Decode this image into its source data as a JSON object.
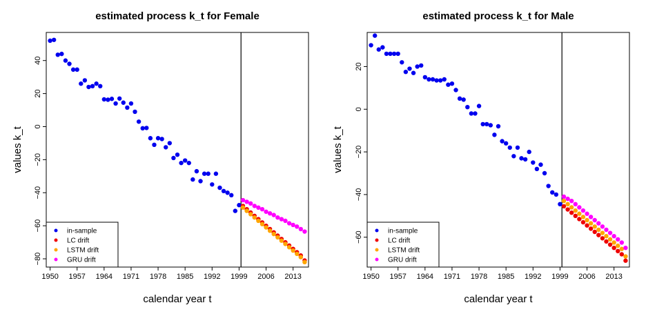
{
  "colors": {
    "in_sample": "#0000ee",
    "lc_drift": "#ee0000",
    "lstm_drift": "#ffa500",
    "gru_drift": "#ff00ff",
    "frame": "#000000"
  },
  "legend_entries": [
    "in-sample",
    "LC drift",
    "LSTM drift",
    "GRU drift"
  ],
  "chart_data": [
    {
      "type": "scatter",
      "title": "estimated process k_t for Female",
      "xlabel": "calendar year t",
      "ylabel": "values k_t",
      "xlim": [
        1949,
        2017
      ],
      "ylim": [
        -85,
        57
      ],
      "xticks": [
        1950,
        1957,
        1964,
        1971,
        1978,
        1985,
        1992,
        1999,
        2006,
        2013
      ],
      "yticks": [
        -80,
        -60,
        -40,
        -20,
        0,
        20,
        40
      ],
      "vline": 1999.5,
      "legend_position": "bottom-left",
      "series": [
        {
          "name": "in-sample",
          "color_key": "in_sample",
          "x": [
            1950,
            1951,
            1952,
            1953,
            1954,
            1955,
            1956,
            1957,
            1958,
            1959,
            1960,
            1961,
            1962,
            1963,
            1964,
            1965,
            1966,
            1967,
            1968,
            1969,
            1970,
            1971,
            1972,
            1973,
            1974,
            1975,
            1976,
            1977,
            1978,
            1979,
            1980,
            1981,
            1982,
            1983,
            1984,
            1985,
            1986,
            1987,
            1988,
            1989,
            1990,
            1991,
            1992,
            1993,
            1994,
            1995,
            1996,
            1997,
            1998,
            1999
          ],
          "y": [
            52,
            52.5,
            43.5,
            44,
            40,
            38,
            34.5,
            34.5,
            26,
            28,
            24,
            24.5,
            26,
            24.5,
            16.5,
            16.3,
            16.8,
            14,
            17,
            14.5,
            11.5,
            14,
            9,
            3,
            -1,
            -0.8,
            -7,
            -11,
            -7,
            -7.5,
            -12.5,
            -10,
            -19,
            -17,
            -22,
            -20.5,
            -22,
            -32,
            -27,
            -33,
            -28.5,
            -28.5,
            -35,
            -28.5,
            -37,
            -39,
            -40,
            -41.5,
            -51,
            -47.5
          ]
        },
        {
          "name": "LC drift",
          "color_key": "lc_drift",
          "x": [
            2000,
            2001,
            2002,
            2003,
            2004,
            2005,
            2006,
            2007,
            2008,
            2009,
            2010,
            2011,
            2012,
            2013,
            2014,
            2015,
            2016
          ],
          "y": [
            -48,
            -50,
            -52,
            -54,
            -56,
            -58,
            -60,
            -62,
            -64,
            -66,
            -68,
            -70,
            -72,
            -74,
            -76,
            -78,
            -81
          ]
        },
        {
          "name": "LSTM drift",
          "color_key": "lstm_drift",
          "x": [
            2000,
            2001,
            2002,
            2003,
            2004,
            2005,
            2006,
            2007,
            2008,
            2009,
            2010,
            2011,
            2012,
            2013,
            2014,
            2015,
            2016
          ],
          "y": [
            -49,
            -51,
            -53,
            -55,
            -57,
            -59,
            -61,
            -63,
            -65,
            -67,
            -69,
            -71,
            -73,
            -75,
            -77,
            -79,
            -82
          ]
        },
        {
          "name": "GRU drift",
          "color_key": "gru_drift",
          "x": [
            2000,
            2001,
            2002,
            2003,
            2004,
            2005,
            2006,
            2007,
            2008,
            2009,
            2010,
            2011,
            2012,
            2013,
            2014,
            2015,
            2016
          ],
          "y": [
            -44.5,
            -45.5,
            -46.5,
            -48,
            -49,
            -50,
            -51.5,
            -52.5,
            -53.5,
            -55,
            -56,
            -57,
            -58.5,
            -59.5,
            -60.5,
            -62,
            -63.5
          ]
        }
      ]
    },
    {
      "type": "scatter",
      "title": "estimated process k_t for Male",
      "xlabel": "calendar year t",
      "ylabel": "values k_t",
      "xlim": [
        1949,
        2017
      ],
      "ylim": [
        -74,
        36
      ],
      "xticks": [
        1950,
        1957,
        1964,
        1971,
        1978,
        1985,
        1992,
        1999,
        2006,
        2013
      ],
      "yticks": [
        -60,
        -40,
        -20,
        0,
        20
      ],
      "vline": 1999.5,
      "legend_position": "bottom-left",
      "series": [
        {
          "name": "in-sample",
          "color_key": "in_sample",
          "x": [
            1950,
            1951,
            1952,
            1953,
            1954,
            1955,
            1956,
            1957,
            1958,
            1959,
            1960,
            1961,
            1962,
            1963,
            1964,
            1965,
            1966,
            1967,
            1968,
            1969,
            1970,
            1971,
            1972,
            1973,
            1974,
            1975,
            1976,
            1977,
            1978,
            1979,
            1980,
            1981,
            1982,
            1983,
            1984,
            1985,
            1986,
            1987,
            1988,
            1989,
            1990,
            1991,
            1992,
            1993,
            1994,
            1995,
            1996,
            1997,
            1998,
            1999
          ],
          "y": [
            30,
            34.5,
            28,
            29,
            26,
            26,
            26,
            26,
            22,
            17.5,
            19,
            17,
            20,
            20.5,
            15,
            14,
            14,
            13.5,
            13.5,
            14,
            11.5,
            12,
            9,
            5,
            4.5,
            1,
            -2,
            -2,
            1.5,
            -7,
            -7,
            -7.5,
            -12,
            -8,
            -15,
            -16,
            -18,
            -22,
            -18,
            -23,
            -23.5,
            -20,
            -25,
            -28,
            -26,
            -30,
            -36,
            -39,
            -40,
            -44.5
          ]
        },
        {
          "name": "LC drift",
          "color_key": "lc_drift",
          "x": [
            2000,
            2001,
            2002,
            2003,
            2004,
            2005,
            2006,
            2007,
            2008,
            2009,
            2010,
            2011,
            2012,
            2013,
            2014,
            2015,
            2016
          ],
          "y": [
            -45.5,
            -47,
            -48.5,
            -50,
            -51.5,
            -53,
            -54.5,
            -56,
            -57.5,
            -59,
            -60.5,
            -62,
            -63.5,
            -65,
            -66.5,
            -68,
            -71
          ]
        },
        {
          "name": "LSTM drift",
          "color_key": "lstm_drift",
          "x": [
            2000,
            2001,
            2002,
            2003,
            2004,
            2005,
            2006,
            2007,
            2008,
            2009,
            2010,
            2011,
            2012,
            2013,
            2014,
            2015,
            2016
          ],
          "y": [
            -43,
            -44.5,
            -46,
            -47.5,
            -49,
            -50.5,
            -52,
            -53.5,
            -55,
            -56.5,
            -58,
            -59.5,
            -61,
            -62.5,
            -64,
            -65.5,
            -69
          ]
        },
        {
          "name": "GRU drift",
          "color_key": "gru_drift",
          "x": [
            2000,
            2001,
            2002,
            2003,
            2004,
            2005,
            2006,
            2007,
            2008,
            2009,
            2010,
            2011,
            2012,
            2013,
            2014,
            2015,
            2016
          ],
          "y": [
            -41,
            -42,
            -43,
            -44.5,
            -46,
            -47.5,
            -49,
            -50.5,
            -52,
            -53.5,
            -55,
            -56.5,
            -58,
            -59.5,
            -61,
            -62.5,
            -65
          ]
        }
      ]
    }
  ]
}
